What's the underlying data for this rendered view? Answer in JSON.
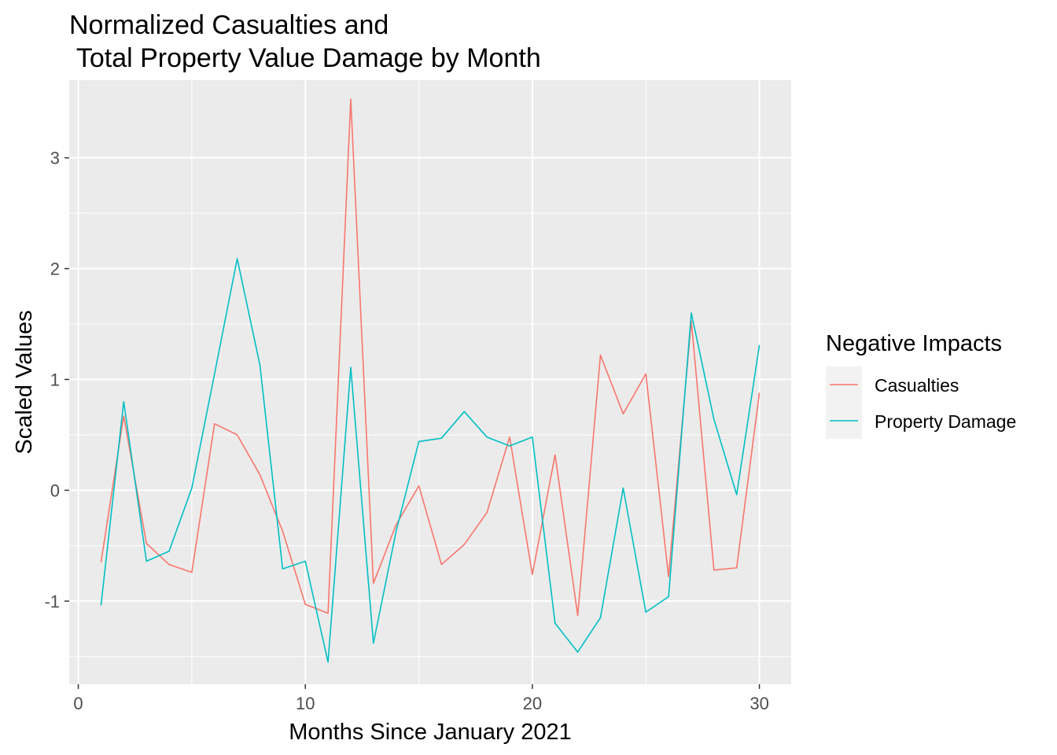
{
  "chart_data": {
    "type": "line",
    "title_line1": "Normalized Casualties and",
    "title_line2": " Total Property Value Damage by Month",
    "xlabel": "Months Since January 2021",
    "ylabel": "Scaled Values",
    "xlim": [
      -0.4,
      31.4
    ],
    "ylim": [
      -1.75,
      3.7
    ],
    "x_ticks": [
      0,
      10,
      20,
      30
    ],
    "x_tick_labels": [
      "0",
      "10",
      "20",
      "30"
    ],
    "y_ticks": [
      -1,
      0,
      1,
      2,
      3
    ],
    "y_tick_labels": [
      "-1",
      "0",
      "1",
      "2",
      "3"
    ],
    "grid": true,
    "legend_position": "right",
    "legend_title": "Negative Impacts",
    "x": [
      1,
      2,
      3,
      4,
      5,
      6,
      7,
      8,
      9,
      10,
      11,
      12,
      13,
      14,
      15,
      16,
      17,
      18,
      19,
      20,
      21,
      22,
      23,
      24,
      25,
      26,
      27,
      28,
      29,
      30
    ],
    "series": [
      {
        "name": "Casualties",
        "color": "#F8766D",
        "values": [
          -0.65,
          0.67,
          -0.48,
          -0.67,
          -0.74,
          0.6,
          0.5,
          0.14,
          -0.37,
          -1.03,
          -1.11,
          3.53,
          -0.84,
          -0.31,
          0.04,
          -0.67,
          -0.49,
          -0.2,
          0.48,
          -0.76,
          0.32,
          -1.13,
          1.22,
          0.69,
          1.05,
          -0.78,
          1.53,
          -0.72,
          -0.7,
          0.88
        ]
      },
      {
        "name": "Property Damage",
        "color": "#00BFC4",
        "values": [
          -1.04,
          0.8,
          -0.64,
          -0.55,
          0.02,
          1.05,
          2.09,
          1.13,
          -0.71,
          -0.64,
          -1.55,
          1.11,
          -1.38,
          -0.37,
          0.44,
          0.47,
          0.71,
          0.48,
          0.4,
          0.48,
          -1.2,
          -1.46,
          -1.15,
          0.02,
          -1.1,
          -0.96,
          1.6,
          0.64,
          -0.04,
          1.31
        ]
      }
    ]
  }
}
